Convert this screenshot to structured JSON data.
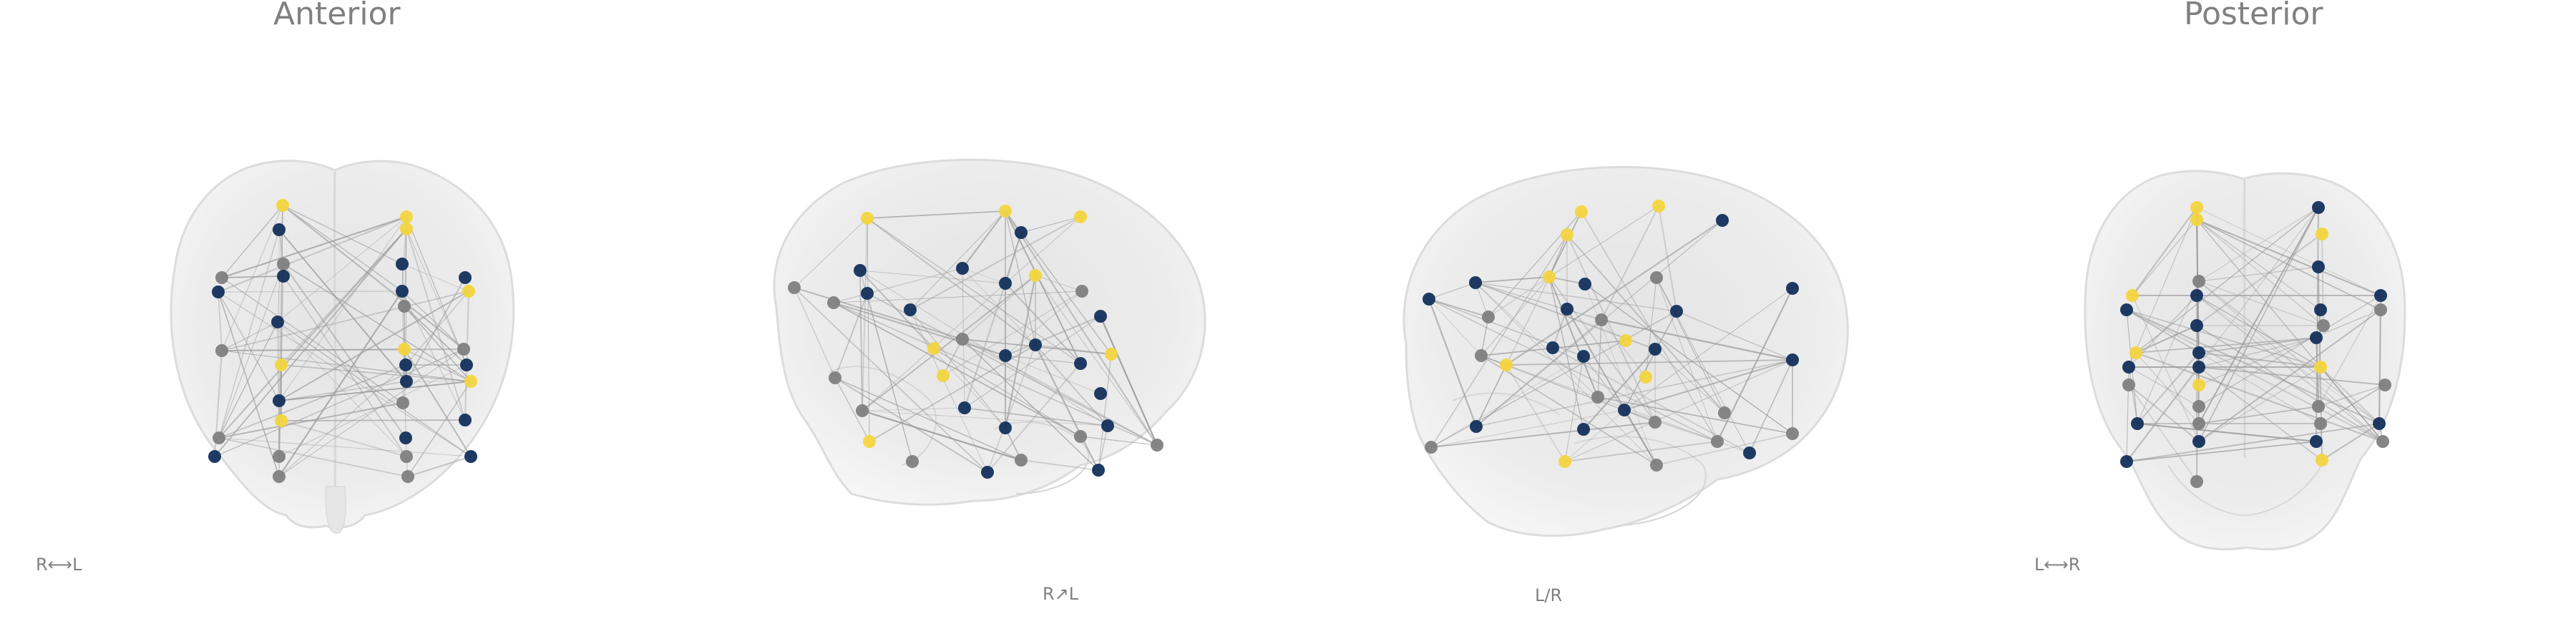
{
  "views": [
    {
      "id": "anterior",
      "title": "Anterior",
      "orientation": "R⟷L"
    },
    {
      "id": "right",
      "title": "",
      "orientation": "R↗L"
    },
    {
      "id": "left",
      "title": "",
      "orientation": "L/R"
    },
    {
      "id": "posterior",
      "title": "Posterior",
      "orientation": "L⟷R"
    }
  ],
  "legend_colors": {
    "yellow": "#f3d53f",
    "navy": "#13305b",
    "gray": "#7f7f7f",
    "brain": "#e9e9e9",
    "edge": "#9a9a9a"
  }
}
